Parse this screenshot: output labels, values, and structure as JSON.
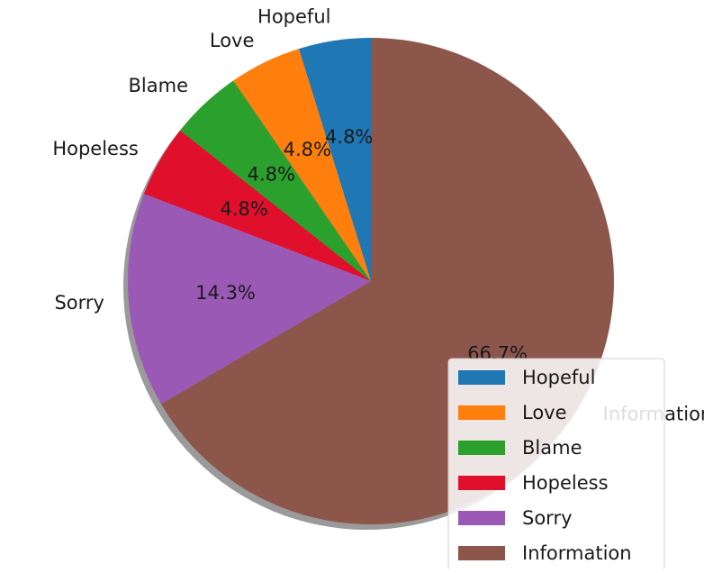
{
  "chart_data": {
    "type": "pie",
    "title": "",
    "shadow": true,
    "start_angle_deg": 90,
    "direction": "counterclockwise",
    "legend_placement": "lower-right",
    "slices": [
      {
        "label": "Hopeful",
        "value": 4.8,
        "pct_label": "4.8%",
        "color": "#1f77b4"
      },
      {
        "label": "Love",
        "value": 4.8,
        "pct_label": "4.8%",
        "color": "#ff7f0e"
      },
      {
        "label": "Blame",
        "value": 4.8,
        "pct_label": "4.8%",
        "color": "#2ca02c"
      },
      {
        "label": "Hopeless",
        "value": 4.8,
        "pct_label": "4.8%",
        "color": "#e0102c"
      },
      {
        "label": "Sorry",
        "value": 14.3,
        "pct_label": "14.3%",
        "color": "#9b59b6"
      },
      {
        "label": "Information",
        "value": 66.7,
        "pct_label": "66.7%",
        "color": "#8c564b"
      }
    ]
  }
}
